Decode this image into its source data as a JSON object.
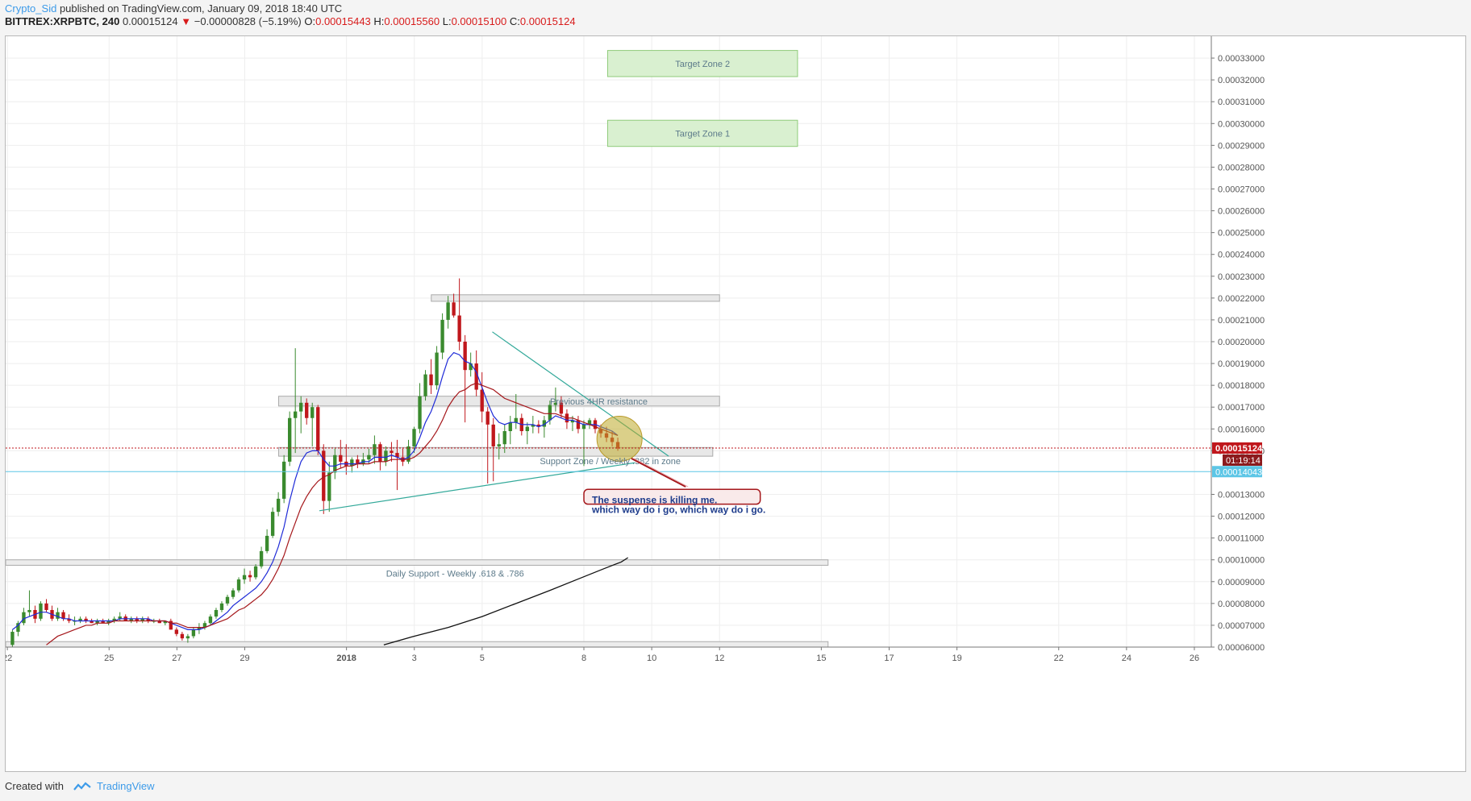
{
  "header": {
    "author": "Crypto_Sid",
    "published": "published on TradingView.com, January 09, 2018 18:40 UTC",
    "symbol": "BITTREX:XRPBTC, 240",
    "last": "0.00015124",
    "change": "−0.00000828 (−5.19%)",
    "o_label": "O:",
    "o_value": "0.00015443",
    "h_label": "H:",
    "h_value": "0.00015560",
    "l_label": "L:",
    "l_value": "0.00015100",
    "c_label": "C:",
    "c_value": "0.00015124"
  },
  "footer": {
    "created_with": "Created with",
    "brand": "TradingView"
  },
  "colors": {
    "bull": "#3a8a2e",
    "bear": "#c0171c",
    "fast_ma": "#1f2bd8",
    "slow_ma": "#a5171b",
    "long_ma": "#111111",
    "trend": "#33a99a",
    "last_price": "#c0171c",
    "line_price": "#5cc6e6"
  },
  "chart_data": {
    "type": "candlestick",
    "ylim": [
      6e-05,
      0.00034
    ],
    "y_ticks": [
      "0.00033000",
      "0.00032000",
      "0.00031000",
      "0.00030000",
      "0.00029000",
      "0.00028000",
      "0.00027000",
      "0.00026000",
      "0.00025000",
      "0.00024000",
      "0.00023000",
      "0.00022000",
      "0.00021000",
      "0.00020000",
      "0.00019000",
      "0.00018000",
      "0.00017000",
      "0.00016000",
      "0.00015000",
      "0.00013000",
      "0.00012000",
      "0.00011000",
      "0.00010000",
      "0.00009000",
      "0.00008000",
      "0.00007000",
      "0.00006000"
    ],
    "y_tick_values": [
      0.00033,
      0.00032,
      0.00031,
      0.0003,
      0.00029,
      0.00028,
      0.00027,
      0.00026,
      0.00025,
      0.00024,
      0.00023,
      0.00022,
      0.00021,
      0.0002,
      0.00019,
      0.00018,
      0.00017,
      0.00016,
      0.00015,
      0.00013,
      0.00012,
      0.00011,
      0.0001,
      9e-05,
      8e-05,
      7e-05,
      6e-05
    ],
    "x_ticks": [
      "22",
      "25",
      "27",
      "29",
      "2018",
      "3",
      "5",
      "8",
      "10",
      "12",
      "15",
      "17",
      "19",
      "22",
      "24",
      "26"
    ],
    "x_tick_days": [
      22,
      25,
      27,
      29,
      32,
      34,
      36,
      39,
      41,
      43,
      46,
      48,
      50,
      53,
      55,
      57
    ],
    "xlim_days": [
      21.95,
      57.5
    ],
    "last_price_label": "0.00015124",
    "countdown_label": "01:19:14",
    "line_price": 0.00014043,
    "line_price_label": "0.00014043",
    "candles_ohlc": [
      [
        6.1e-05,
        6.8e-05,
        6e-05,
        6.7e-05
      ],
      [
        6.7e-05,
        7.2e-05,
        6.5e-05,
        7.1e-05
      ],
      [
        7.1e-05,
        7.8e-05,
        7e-05,
        7.6e-05
      ],
      [
        7.6e-05,
        8.6e-05,
        7.4e-05,
        7.7e-05
      ],
      [
        7.7e-05,
        7.9e-05,
        7.1e-05,
        7.3e-05
      ],
      [
        7.3e-05,
        8.1e-05,
        7.2e-05,
        8e-05
      ],
      [
        8e-05,
        8.2e-05,
        7.6e-05,
        7.7e-05
      ],
      [
        7.7e-05,
        7.9e-05,
        7.2e-05,
        7.3e-05
      ],
      [
        7.3e-05,
        7.8e-05,
        7.2e-05,
        7.6e-05
      ],
      [
        7.6e-05,
        7.7e-05,
        7.2e-05,
        7.3e-05
      ],
      [
        7.3e-05,
        7.5e-05,
        7.1e-05,
        7.2e-05
      ],
      [
        7.2e-05,
        7.4e-05,
        7e-05,
        7.2e-05
      ],
      [
        7.2e-05,
        7.4e-05,
        7.1e-05,
        7.3e-05
      ],
      [
        7.3e-05,
        7.4e-05,
        7.1e-05,
        7.2e-05
      ],
      [
        7.2e-05,
        7.3e-05,
        7.1e-05,
        7.1e-05
      ],
      [
        7.1e-05,
        7.3e-05,
        7e-05,
        7.2e-05
      ],
      [
        7.2e-05,
        7.3e-05,
        7.1e-05,
        7.1e-05
      ],
      [
        7.1e-05,
        7.3e-05,
        7e-05,
        7.2e-05
      ],
      [
        7.2e-05,
        7.4e-05,
        7.1e-05,
        7.3e-05
      ],
      [
        7.3e-05,
        7.6e-05,
        7.2e-05,
        7.4e-05
      ],
      [
        7.4e-05,
        7.5e-05,
        7.2e-05,
        7.2e-05
      ],
      [
        7.2e-05,
        7.4e-05,
        7.1e-05,
        7.3e-05
      ],
      [
        7.3e-05,
        7.4e-05,
        7.1e-05,
        7.2e-05
      ],
      [
        7.2e-05,
        7.4e-05,
        7.1e-05,
        7.3e-05
      ],
      [
        7.3e-05,
        7.4e-05,
        7.1e-05,
        7.2e-05
      ],
      [
        7.2e-05,
        7.3e-05,
        7.1e-05,
        7.2e-05
      ],
      [
        7.2e-05,
        7.3e-05,
        7.1e-05,
        7.1e-05
      ],
      [
        7.1e-05,
        7.2e-05,
        7e-05,
        7.2e-05
      ],
      [
        7.2e-05,
        7.3e-05,
        6.8e-05,
        6.8e-05
      ],
      [
        6.8e-05,
        6.9e-05,
        6.5e-05,
        6.6e-05
      ],
      [
        6.6e-05,
        6.7e-05,
        6.3e-05,
        6.4e-05
      ],
      [
        6.4e-05,
        6.6e-05,
        6.2e-05,
        6.5e-05
      ],
      [
        6.5e-05,
        6.9e-05,
        6.4e-05,
        6.8e-05
      ],
      [
        6.8e-05,
        7.1e-05,
        6.6e-05,
        6.9e-05
      ],
      [
        6.9e-05,
        7.2e-05,
        6.8e-05,
        7.1e-05
      ],
      [
        7.1e-05,
        7.5e-05,
        7e-05,
        7.4e-05
      ],
      [
        7.4e-05,
        7.8e-05,
        7.3e-05,
        7.7e-05
      ],
      [
        7.7e-05,
        8.1e-05,
        7.6e-05,
        8e-05
      ],
      [
        8e-05,
        8.4e-05,
        7.9e-05,
        8.3e-05
      ],
      [
        8.3e-05,
        8.7e-05,
        8.2e-05,
        8.6e-05
      ],
      [
        8.6e-05,
        9.2e-05,
        8.5e-05,
        9.1e-05
      ],
      [
        9.1e-05,
        9.6e-05,
        8.9e-05,
        9.3e-05
      ],
      [
        9.3e-05,
        9.5e-05,
        9e-05,
        9.2e-05
      ],
      [
        9.2e-05,
        9.8e-05,
        9.1e-05,
        9.7e-05
      ],
      [
        9.7e-05,
        0.000106,
        9.6e-05,
        0.000104
      ],
      [
        0.000104,
        0.000114,
        0.000103,
        0.000111
      ],
      [
        0.000111,
        0.000124,
        0.00011,
        0.000122
      ],
      [
        0.000122,
        0.000131,
        0.00012,
        0.000128
      ],
      [
        0.000128,
        0.000148,
        0.000126,
        0.000145
      ],
      [
        0.000145,
        0.000168,
        0.000143,
        0.000165
      ],
      [
        0.000165,
        0.000197,
        0.000149,
        0.000168
      ],
      [
        0.000168,
        0.000175,
        0.000158,
        0.000172
      ],
      [
        0.000172,
        0.000174,
        0.000162,
        0.000165
      ],
      [
        0.000165,
        0.000172,
        0.000152,
        0.00017
      ],
      [
        0.00017,
        0.000171,
        0.000148,
        0.00015
      ],
      [
        0.00015,
        0.000153,
        0.000121,
        0.000127
      ],
      [
        0.000127,
        0.000145,
        0.000122,
        0.00014
      ],
      [
        0.00014,
        0.000151,
        0.000137,
        0.000148
      ],
      [
        0.000148,
        0.000155,
        0.000142,
        0.000145
      ],
      [
        0.000145,
        0.000153,
        0.000139,
        0.000143
      ],
      [
        0.000143,
        0.000147,
        0.00014,
        0.000146
      ],
      [
        0.000146,
        0.000148,
        0.000142,
        0.000144
      ],
      [
        0.000144,
        0.000149,
        0.000143,
        0.000146
      ],
      [
        0.000146,
        0.000151,
        0.000144,
        0.000148
      ],
      [
        0.000148,
        0.000157,
        0.000144,
        0.000153
      ],
      [
        0.000153,
        0.000154,
        0.000141,
        0.000145
      ],
      [
        0.000145,
        0.000152,
        0.000143,
        0.00015
      ],
      [
        0.00015,
        0.000154,
        0.000145,
        0.000149
      ],
      [
        0.000149,
        0.000155,
        0.000132,
        0.000147
      ],
      [
        0.000147,
        0.000151,
        0.000143,
        0.000145
      ],
      [
        0.000145,
        0.000155,
        0.000144,
        0.000152
      ],
      [
        0.000152,
        0.000161,
        0.000149,
        0.00016
      ],
      [
        0.00016,
        0.000181,
        0.000158,
        0.000175
      ],
      [
        0.000175,
        0.000187,
        0.000173,
        0.000185
      ],
      [
        0.000185,
        0.000192,
        0.000176,
        0.00018
      ],
      [
        0.00018,
        0.000198,
        0.000178,
        0.000195
      ],
      [
        0.000195,
        0.000213,
        0.000192,
        0.00021
      ],
      [
        0.00021,
        0.000221,
        0.000206,
        0.000218
      ],
      [
        0.000218,
        0.000222,
        0.000211,
        0.000212
      ],
      [
        0.000212,
        0.000229,
        0.000196,
        0.0002
      ],
      [
        0.0002,
        0.000203,
        0.000163,
        0.000187
      ],
      [
        0.000187,
        0.000195,
        0.000184,
        0.00019
      ],
      [
        0.00019,
        0.000196,
        0.000175,
        0.000178
      ],
      [
        0.000178,
        0.000186,
        0.000163,
        0.000168
      ],
      [
        0.000168,
        0.00017,
        0.000135,
        0.000162
      ],
      [
        0.000162,
        0.000165,
        0.000136,
        0.000152
      ],
      [
        0.000152,
        0.000158,
        0.000146,
        0.000153
      ],
      [
        0.000153,
        0.000162,
        0.000149,
        0.000159
      ],
      [
        0.000159,
        0.000166,
        0.000153,
        0.000163
      ],
      [
        0.000163,
        0.000176,
        0.00016,
        0.000165
      ],
      [
        0.000165,
        0.000167,
        0.000157,
        0.000159
      ],
      [
        0.000159,
        0.000163,
        0.000153,
        0.000161
      ],
      [
        0.000161,
        0.000166,
        0.000158,
        0.000162
      ],
      [
        0.000162,
        0.000164,
        0.000158,
        0.000161
      ],
      [
        0.000161,
        0.000166,
        0.000156,
        0.000164
      ],
      [
        0.000164,
        0.000173,
        0.000162,
        0.000171
      ],
      [
        0.000171,
        0.000179,
        0.000168,
        0.000172
      ],
      [
        0.000172,
        0.000175,
        0.000165,
        0.000167
      ],
      [
        0.000167,
        0.000169,
        0.00016,
        0.000163
      ],
      [
        0.000163,
        0.000166,
        0.000159,
        0.000164
      ],
      [
        0.000164,
        0.000166,
        0.000158,
        0.00016
      ],
      [
        0.00016,
        0.000164,
        0.000143,
        0.000162
      ],
      [
        0.000162,
        0.000165,
        0.00016,
        0.000164
      ],
      [
        0.000164,
        0.000165,
        0.000158,
        0.00016
      ],
      [
        0.00016,
        0.000162,
        0.000156,
        0.000158
      ],
      [
        0.000158,
        0.000161,
        0.000154,
        0.000156
      ],
      [
        0.000156,
        0.000159,
        0.000152,
        0.000154
      ],
      [
        0.000154,
        0.000156,
        0.00015,
        0.000151
      ]
    ],
    "series": [
      {
        "name": "fast MA",
        "values": [
          6.8e-05,
          7e-05,
          7.3e-05,
          7.4e-05,
          7.5e-05,
          7.6e-05,
          7.6e-05,
          7.5e-05,
          7.4e-05,
          7.3e-05,
          7.3e-05,
          7.2e-05,
          7.2e-05,
          7.2e-05,
          7.2e-05,
          7.2e-05,
          7.2e-05,
          7.2e-05,
          7.2e-05,
          7.3e-05,
          7.3e-05,
          7.3e-05,
          7.3e-05,
          7.3e-05,
          7.3e-05,
          7.2e-05,
          7.2e-05,
          7.2e-05,
          7.1e-05,
          7e-05,
          6.9e-05,
          6.8e-05,
          6.8e-05,
          6.8e-05,
          6.9e-05,
          7e-05,
          7.2e-05,
          7.4e-05,
          7.6e-05,
          7.9e-05,
          8.1e-05,
          8.3e-05,
          8.5e-05,
          8.7e-05,
          9e-05,
          9.4e-05,
          9.9e-05,
          0.000106,
          0.000115,
          0.000127,
          0.000137,
          0.000145,
          0.000149,
          0.00015,
          0.00015,
          0.000146,
          0.000143,
          0.000143,
          0.000144,
          0.000144,
          0.000144,
          0.000144,
          0.000145,
          0.000145,
          0.000147,
          0.000147,
          0.000147,
          0.000148,
          0.000147,
          0.000146,
          0.000147,
          0.00015,
          0.000156,
          0.000163,
          0.000168,
          0.000175,
          0.000184,
          0.000192,
          0.000195,
          0.000194,
          0.000191,
          0.00019,
          0.000186,
          0.000179,
          0.000172,
          0.000166,
          0.000163,
          0.000162,
          0.000163,
          0.000163,
          0.000162,
          0.000162,
          0.000162,
          0.000161,
          0.000162,
          0.000164,
          0.000166,
          0.000165,
          0.000164,
          0.000164,
          0.000163,
          0.000162,
          0.000162,
          0.000162,
          0.000161,
          0.00016,
          0.000159,
          0.000157
        ]
      },
      {
        "name": "slow MA",
        "values": [
          null,
          null,
          null,
          null,
          null,
          null,
          6.1e-05,
          6.3e-05,
          6.5e-05,
          6.6e-05,
          6.7e-05,
          6.8e-05,
          6.9e-05,
          7e-05,
          7e-05,
          7.1e-05,
          7.1e-05,
          7.1e-05,
          7.2e-05,
          7.2e-05,
          7.2e-05,
          7.2e-05,
          7.2e-05,
          7.2e-05,
          7.2e-05,
          7.2e-05,
          7.2e-05,
          7.2e-05,
          7.1e-05,
          7.1e-05,
          7e-05,
          6.9e-05,
          6.9e-05,
          6.9e-05,
          6.9e-05,
          7e-05,
          7.1e-05,
          7.2e-05,
          7.3e-05,
          7.5e-05,
          7.7e-05,
          7.8e-05,
          8e-05,
          8.2e-05,
          8.4e-05,
          8.7e-05,
          9.1e-05,
          9.6e-05,
          0.000102,
          0.00011,
          0.000117,
          0.000124,
          0.000129,
          0.000133,
          0.000136,
          0.000138,
          0.000139,
          0.000141,
          0.000142,
          0.000143,
          0.000143,
          0.000144,
          0.000144,
          0.000144,
          0.000145,
          0.000145,
          0.000145,
          0.000146,
          0.000146,
          0.000146,
          0.000146,
          0.000147,
          0.000149,
          0.000152,
          0.000155,
          0.000159,
          0.000164,
          0.00017,
          0.000174,
          0.000177,
          0.000178,
          0.00018,
          0.000181,
          0.00018,
          0.000179,
          0.000178,
          0.000176,
          0.000174,
          0.000173,
          0.000172,
          0.000171,
          0.00017,
          0.000169,
          0.000168,
          0.000167,
          0.000167,
          0.000167,
          0.000166,
          0.000165,
          0.000165,
          0.000164,
          0.000163,
          0.000162,
          0.000161,
          0.00016,
          0.000159,
          0.000158,
          0.000157
        ]
      },
      {
        "name": "long MA",
        "x_days": [
          33.1,
          34.0,
          35.0,
          36.0,
          37.0,
          38.0,
          38.8,
          39.6,
          40.1,
          40.3
        ],
        "values": [
          6.1e-05,
          6.5e-05,
          6.9e-05,
          7.4e-05,
          8e-05,
          8.6e-05,
          9.1e-05,
          9.6e-05,
          9.9e-05,
          0.000101
        ]
      }
    ],
    "annotations": {
      "zones": [
        {
          "label": "Target Zone 2",
          "day_from": 39.7,
          "day_to": 45.3,
          "y_from": 0.0003215,
          "y_to": 0.0003335,
          "fill": "#d9f0d0",
          "stroke": "#8fcb7a"
        },
        {
          "label": "Target Zone 1",
          "day_from": 39.7,
          "day_to": 45.3,
          "y_from": 0.0002895,
          "y_to": 0.0003015,
          "fill": "#d9f0d0",
          "stroke": "#8fcb7a"
        },
        {
          "label": "",
          "day_from": 34.5,
          "day_to": 43.0,
          "y_from": 0.0002185,
          "y_to": 0.0002215,
          "fill": "#e8e8e8",
          "stroke": "#aaaaaa"
        },
        {
          "label": "Previous 4HR resistance",
          "day_from": 30.0,
          "day_to": 43.0,
          "y_from": 0.0001705,
          "y_to": 0.000175,
          "fill": "#e8e8e8",
          "stroke": "#aaaaaa"
        },
        {
          "label": "Support Zone /  Weekly .382 in zone",
          "day_from": 30.0,
          "day_to": 42.8,
          "y_from": 0.0001475,
          "y_to": 0.0001515,
          "fill": "#e8e8e8",
          "stroke": "#aaaaaa"
        },
        {
          "label": "Daily Support - Weekly .618 & .786",
          "day_from": 21.95,
          "day_to": 46.2,
          "y_from": 9.75e-05,
          "y_to": 0.0001,
          "fill": "#ececec",
          "stroke": "#aaaaaa"
        },
        {
          "label": "",
          "day_from": 21.95,
          "day_to": 46.2,
          "y_from": 6e-05,
          "y_to": 6.25e-05,
          "fill": "#ececec",
          "stroke": "#aaaaaa"
        }
      ],
      "trend_lines": [
        {
          "from": [
            36.3,
            0.0002045
          ],
          "to": [
            41.5,
            0.0001475
          ]
        },
        {
          "from": [
            31.2,
            0.0001225
          ],
          "to": [
            40.5,
            0.0001445
          ]
        }
      ],
      "circle": {
        "day": 40.05,
        "y": 0.0001555,
        "fill": "rgba(190,170,40,0.55)",
        "stroke": "#b99a2a"
      },
      "callout": {
        "line1": "The suspense is killing me.",
        "line2": "which way do i go, which way do i go.",
        "pointer_from": [
          40.4,
          0.0001465
        ],
        "pointer_to": [
          42.0,
          0.0001335
        ],
        "box_day": [
          39.0,
          44.2
        ],
        "box_y": [
          0.0001323,
          0.0001255
        ]
      }
    }
  }
}
